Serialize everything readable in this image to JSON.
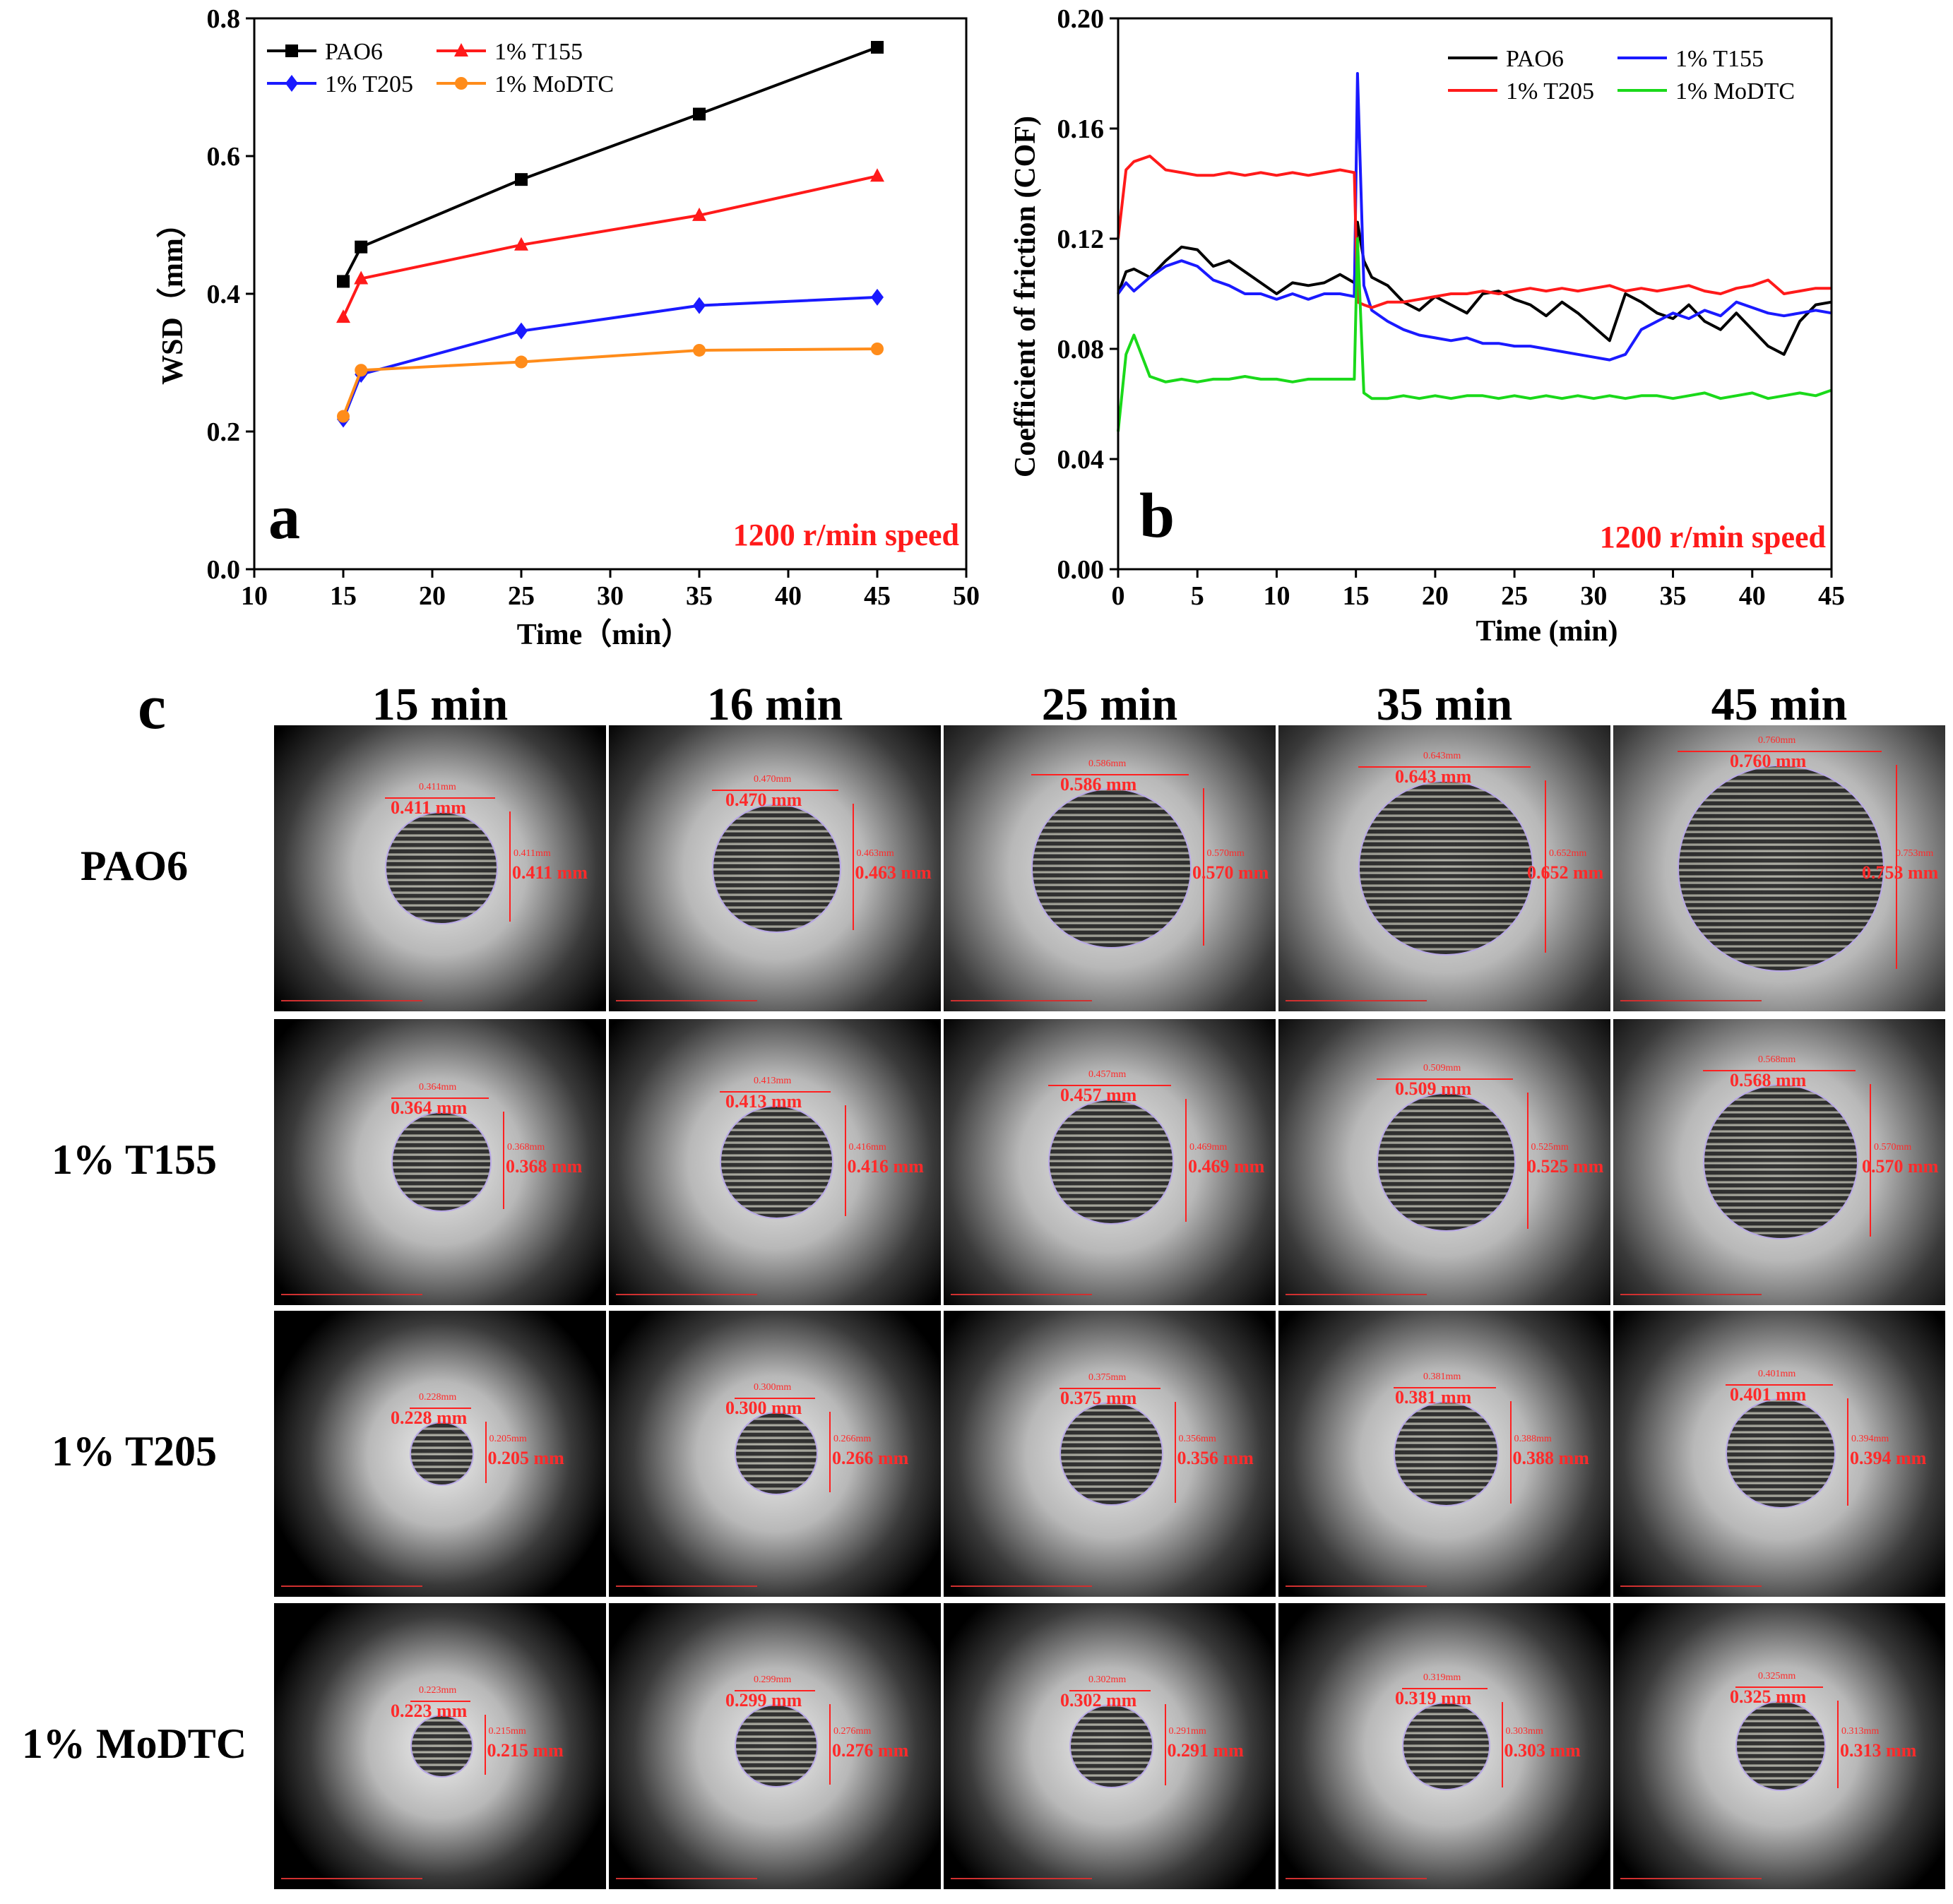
{
  "chart_data": [
    {
      "panel": "a",
      "type": "line",
      "xlabel": "Time（min）",
      "ylabel": "WSD（mm）",
      "xlim": [
        10,
        50
      ],
      "ylim": [
        0.0,
        0.8
      ],
      "xticks": [
        "10",
        "15",
        "20",
        "25",
        "30",
        "35",
        "40",
        "45",
        "50"
      ],
      "yticks": [
        "0.0",
        "0.2",
        "0.4",
        "0.6",
        "0.8"
      ],
      "annotation": "1200 r/min speed",
      "legend_position": "top-left",
      "x": [
        15,
        16,
        25,
        35,
        45
      ],
      "series": [
        {
          "name": "PAO6",
          "color": "#000000",
          "marker": "square",
          "values": [
            0.418,
            0.468,
            0.566,
            0.661,
            0.758
          ]
        },
        {
          "name": "1% T155",
          "color": "#ff1a1a",
          "marker": "triangle",
          "values": [
            0.366,
            0.422,
            0.471,
            0.514,
            0.571
          ]
        },
        {
          "name": "1% T205",
          "color": "#1a1aff",
          "marker": "diamond",
          "values": [
            0.218,
            0.283,
            0.346,
            0.383,
            0.395
          ]
        },
        {
          "name": "1% MoDTC",
          "color": "#ff8c1a",
          "marker": "circle",
          "values": [
            0.222,
            0.289,
            0.301,
            0.318,
            0.32
          ]
        }
      ]
    },
    {
      "panel": "b",
      "type": "line",
      "xlabel": "Time (min)",
      "ylabel": "Coefficient of friction (COF)",
      "xlim": [
        0,
        45
      ],
      "ylim": [
        0.0,
        0.2
      ],
      "xticks": [
        "0",
        "5",
        "10",
        "15",
        "20",
        "25",
        "30",
        "35",
        "40",
        "45"
      ],
      "yticks": [
        "0.00",
        "0.04",
        "0.08",
        "0.12",
        "0.16",
        "0.20"
      ],
      "annotation": "1200 r/min speed",
      "legend_position": "top-right",
      "x": [
        0,
        0.5,
        1,
        2,
        3,
        4,
        5,
        6,
        7,
        8,
        9,
        10,
        11,
        12,
        13,
        14,
        14.9,
        15.1,
        15.5,
        16,
        17,
        18,
        19,
        20,
        21,
        22,
        23,
        24,
        25,
        26,
        27,
        28,
        29,
        30,
        31,
        32,
        33,
        34,
        35,
        36,
        37,
        38,
        39,
        40,
        41,
        42,
        43,
        44,
        45
      ],
      "series": [
        {
          "name": "PAO6",
          "color": "#000000",
          "values": [
            0.1,
            0.108,
            0.109,
            0.106,
            0.112,
            0.117,
            0.116,
            0.11,
            0.112,
            0.108,
            0.104,
            0.1,
            0.104,
            0.103,
            0.104,
            0.107,
            0.104,
            0.126,
            0.112,
            0.106,
            0.103,
            0.097,
            0.094,
            0.099,
            0.096,
            0.093,
            0.1,
            0.101,
            0.098,
            0.096,
            0.092,
            0.097,
            0.093,
            0.088,
            0.083,
            0.1,
            0.097,
            0.093,
            0.091,
            0.096,
            0.09,
            0.087,
            0.093,
            0.087,
            0.081,
            0.078,
            0.09,
            0.096,
            0.097
          ]
        },
        {
          "name": "1% T155",
          "color": "#1a1aff",
          "values": [
            0.1,
            0.104,
            0.101,
            0.106,
            0.11,
            0.112,
            0.11,
            0.105,
            0.103,
            0.1,
            0.1,
            0.098,
            0.1,
            0.098,
            0.1,
            0.1,
            0.099,
            0.18,
            0.103,
            0.094,
            0.09,
            0.087,
            0.085,
            0.084,
            0.083,
            0.084,
            0.082,
            0.082,
            0.081,
            0.081,
            0.08,
            0.079,
            0.078,
            0.077,
            0.076,
            0.078,
            0.087,
            0.09,
            0.093,
            0.091,
            0.094,
            0.092,
            0.097,
            0.095,
            0.093,
            0.092,
            0.093,
            0.094,
            0.093
          ]
        },
        {
          "name": "1% T205",
          "color": "#ff1a1a",
          "values": [
            0.12,
            0.145,
            0.148,
            0.15,
            0.145,
            0.144,
            0.143,
            0.143,
            0.144,
            0.143,
            0.144,
            0.143,
            0.144,
            0.143,
            0.144,
            0.145,
            0.144,
            0.097,
            0.096,
            0.095,
            0.097,
            0.097,
            0.098,
            0.099,
            0.1,
            0.1,
            0.101,
            0.1,
            0.101,
            0.102,
            0.101,
            0.102,
            0.101,
            0.102,
            0.103,
            0.101,
            0.102,
            0.101,
            0.102,
            0.103,
            0.101,
            0.1,
            0.102,
            0.103,
            0.105,
            0.1,
            0.101,
            0.102,
            0.102
          ]
        },
        {
          "name": "1% MoDTC",
          "color": "#1ad91a",
          "values": [
            0.05,
            0.078,
            0.085,
            0.07,
            0.068,
            0.069,
            0.068,
            0.069,
            0.069,
            0.07,
            0.069,
            0.069,
            0.068,
            0.069,
            0.069,
            0.069,
            0.069,
            0.12,
            0.064,
            0.062,
            0.062,
            0.063,
            0.062,
            0.063,
            0.062,
            0.063,
            0.063,
            0.062,
            0.063,
            0.062,
            0.063,
            0.062,
            0.063,
            0.062,
            0.063,
            0.062,
            0.063,
            0.063,
            0.062,
            0.063,
            0.064,
            0.062,
            0.063,
            0.064,
            0.062,
            0.063,
            0.064,
            0.063,
            0.065
          ]
        }
      ]
    }
  ],
  "panel_c": {
    "letter": "c",
    "columns": [
      "15 min",
      "16 min",
      "25 min",
      "35 min",
      "45 min"
    ],
    "rows": [
      {
        "label": "PAO6",
        "images": [
          {
            "h": "0.411 mm",
            "v": "0.411 mm",
            "small_h": "0.411mm",
            "small_v": "0.411mm",
            "size": 0.411
          },
          {
            "h": "0.470 mm",
            "v": "0.463 mm",
            "small_h": "0.470mm",
            "small_v": "0.463mm",
            "size": 0.47
          },
          {
            "h": "0.586 mm",
            "v": "0.570 mm",
            "small_h": "0.586mm",
            "small_v": "0.570mm",
            "size": 0.586
          },
          {
            "h": "0.643 mm",
            "v": "0.652 mm",
            "small_h": "0.643mm",
            "small_v": "0.652mm",
            "size": 0.643
          },
          {
            "h": "0.760 mm",
            "v": "0.753 mm",
            "small_h": "0.760mm",
            "small_v": "0.753mm",
            "size": 0.76
          }
        ]
      },
      {
        "label": "1% T155",
        "images": [
          {
            "h": "0.364 mm",
            "v": "0.368 mm",
            "small_h": "0.364mm",
            "small_v": "0.368mm",
            "size": 0.364
          },
          {
            "h": "0.413 mm",
            "v": "0.416 mm",
            "small_h": "0.413mm",
            "small_v": "0.416mm",
            "size": 0.413
          },
          {
            "h": "0.457 mm",
            "v": "0.469 mm",
            "small_h": "0.457mm",
            "small_v": "0.469mm",
            "size": 0.457
          },
          {
            "h": "0.509 mm",
            "v": "0.525 mm",
            "small_h": "0.509mm",
            "small_v": "0.525mm",
            "size": 0.509
          },
          {
            "h": "0.568 mm",
            "v": "0.570 mm",
            "small_h": "0.568mm",
            "small_v": "0.570mm",
            "size": 0.568
          }
        ]
      },
      {
        "label": "1% T205",
        "images": [
          {
            "h": "0.228 mm",
            "v": "0.205 mm",
            "small_h": "0.228mm",
            "small_v": "0.205mm",
            "size": 0.228
          },
          {
            "h": "0.300 mm",
            "v": "0.266 mm",
            "small_h": "0.300mm",
            "small_v": "0.266mm",
            "size": 0.3
          },
          {
            "h": "0.375 mm",
            "v": "0.356 mm",
            "small_h": "0.375mm",
            "small_v": "0.356mm",
            "size": 0.375
          },
          {
            "h": "0.381 mm",
            "v": "0.388 mm",
            "small_h": "0.381mm",
            "small_v": "0.388mm",
            "size": 0.381
          },
          {
            "h": "0.401 mm",
            "v": "0.394 mm",
            "small_h": "0.401mm",
            "small_v": "0.394mm",
            "size": 0.401
          }
        ]
      },
      {
        "label": "1% MoDTC",
        "images": [
          {
            "h": "0.223 mm",
            "v": "0.215 mm",
            "small_h": "0.223mm",
            "small_v": "0.215mm",
            "size": 0.223
          },
          {
            "h": "0.299 mm",
            "v": "0.276 mm",
            "small_h": "0.299mm",
            "small_v": "0.276mm",
            "size": 0.299
          },
          {
            "h": "0.302 mm",
            "v": "0.291 mm",
            "small_h": "0.302mm",
            "small_v": "0.291mm",
            "size": 0.302
          },
          {
            "h": "0.319 mm",
            "v": "0.303 mm",
            "small_h": "0.319mm",
            "small_v": "0.303mm",
            "size": 0.319
          },
          {
            "h": "0.325 mm",
            "v": "0.313 mm",
            "small_h": "0.325mm",
            "small_v": "0.313mm",
            "size": 0.325
          }
        ]
      }
    ]
  }
}
